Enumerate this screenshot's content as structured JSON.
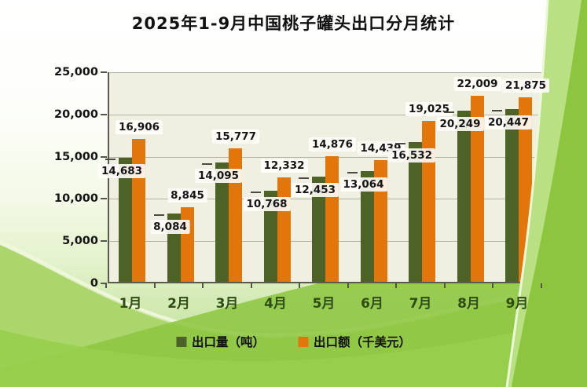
{
  "title": "2025年1-9月中国桃子罐头出口分月统计",
  "chart_data": {
    "type": "bar",
    "title": "2025年1-9月中国桃子罐头出口分月统计",
    "categories": [
      "1月",
      "2月",
      "3月",
      "4月",
      "5月",
      "6月",
      "7月",
      "8月",
      "9月"
    ],
    "series": [
      {
        "name": "出口量（吨）",
        "color": "#4d6227",
        "values": [
          14683,
          8084,
          14095,
          10768,
          12453,
          13064,
          16532,
          20249,
          20447
        ]
      },
      {
        "name": "出口额（千美元）",
        "color": "#e2760b",
        "values": [
          16906,
          8845,
          15777,
          12332,
          14876,
          14439,
          19025,
          22009,
          21875
        ]
      }
    ],
    "ylim": [
      0,
      25000
    ],
    "ytick_step": 5000,
    "ytick_labels": [
      "0",
      "5,000",
      "10,000",
      "15,000",
      "20,000",
      "25,000"
    ],
    "grid": true,
    "legend_position": "bottom",
    "plot_background": "#f0f0e2",
    "label_format": "thousands-comma"
  },
  "legend": {
    "items": [
      {
        "label": "出口量（吨）",
        "color": "#4d6227"
      },
      {
        "label": "出口额（千美元）",
        "color": "#e2760b"
      }
    ]
  }
}
